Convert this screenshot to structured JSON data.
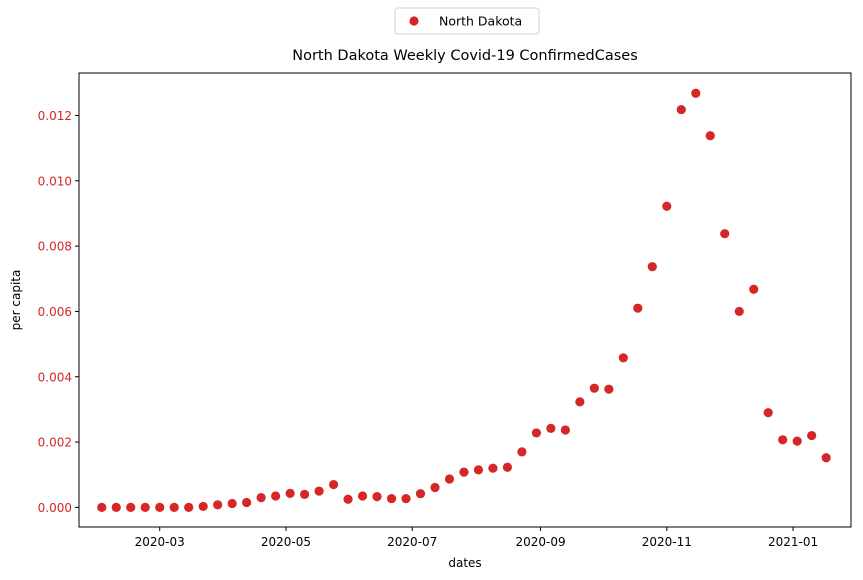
{
  "chart_data": {
    "type": "scatter",
    "title": "North Dakota Weekly Covid-19 ConfirmedCases",
    "xlabel": "dates",
    "ylabel": "per capita",
    "legend": {
      "placement": "top-center",
      "entries": [
        "North Dakota"
      ]
    },
    "colors": {
      "series": "#d62728",
      "ytick": "#d62728",
      "axis": "#000000"
    },
    "grid": false,
    "xlim": [
      "2020-01-22",
      "2021-01-29"
    ],
    "ylim": [
      -0.0006,
      0.0133
    ],
    "x_ticks": [
      {
        "date": "2020-03-01",
        "label": "2020-03"
      },
      {
        "date": "2020-05-01",
        "label": "2020-05"
      },
      {
        "date": "2020-07-01",
        "label": "2020-07"
      },
      {
        "date": "2020-09-01",
        "label": "2020-09"
      },
      {
        "date": "2020-11-01",
        "label": "2020-11"
      },
      {
        "date": "2021-01-01",
        "label": "2021-01"
      }
    ],
    "y_ticks": [
      {
        "value": 0.0,
        "label": "0.000"
      },
      {
        "value": 0.002,
        "label": "0.002"
      },
      {
        "value": 0.004,
        "label": "0.004"
      },
      {
        "value": 0.006,
        "label": "0.006"
      },
      {
        "value": 0.008,
        "label": "0.008"
      },
      {
        "value": 0.01,
        "label": "0.010"
      },
      {
        "value": 0.012,
        "label": "0.012"
      }
    ],
    "series": [
      {
        "name": "North Dakota",
        "x": [
          "2020-02-02",
          "2020-02-09",
          "2020-02-16",
          "2020-02-23",
          "2020-03-01",
          "2020-03-08",
          "2020-03-15",
          "2020-03-22",
          "2020-03-29",
          "2020-04-05",
          "2020-04-12",
          "2020-04-19",
          "2020-04-26",
          "2020-05-03",
          "2020-05-10",
          "2020-05-17",
          "2020-05-24",
          "2020-05-31",
          "2020-06-07",
          "2020-06-14",
          "2020-06-21",
          "2020-06-28",
          "2020-07-05",
          "2020-07-12",
          "2020-07-19",
          "2020-07-26",
          "2020-08-02",
          "2020-08-09",
          "2020-08-16",
          "2020-08-23",
          "2020-08-30",
          "2020-09-06",
          "2020-09-13",
          "2020-09-20",
          "2020-09-27",
          "2020-10-04",
          "2020-10-11",
          "2020-10-18",
          "2020-10-25",
          "2020-11-01",
          "2020-11-08",
          "2020-11-15",
          "2020-11-22",
          "2020-11-29",
          "2020-12-06",
          "2020-12-13",
          "2020-12-20",
          "2020-12-27",
          "2021-01-03",
          "2021-01-10",
          "2021-01-17"
        ],
        "y": [
          0.0,
          0.0,
          0.0,
          0.0,
          0.0,
          0.0,
          0.0,
          3e-05,
          8e-05,
          0.00012,
          0.00015,
          0.0003,
          0.00035,
          0.00043,
          0.0004,
          0.0005,
          0.0007,
          0.00025,
          0.00035,
          0.00033,
          0.00027,
          0.00027,
          0.00042,
          0.00061,
          0.00087,
          0.00108,
          0.00115,
          0.0012,
          0.00123,
          0.0017,
          0.00228,
          0.00242,
          0.00237,
          0.00323,
          0.00365,
          0.00362,
          0.00458,
          0.0061,
          0.00737,
          0.00922,
          0.01218,
          0.01268,
          0.01138,
          0.00838,
          0.006,
          0.00668,
          0.0029,
          0.00207,
          0.00203,
          0.0022,
          0.00152
        ]
      }
    ]
  }
}
